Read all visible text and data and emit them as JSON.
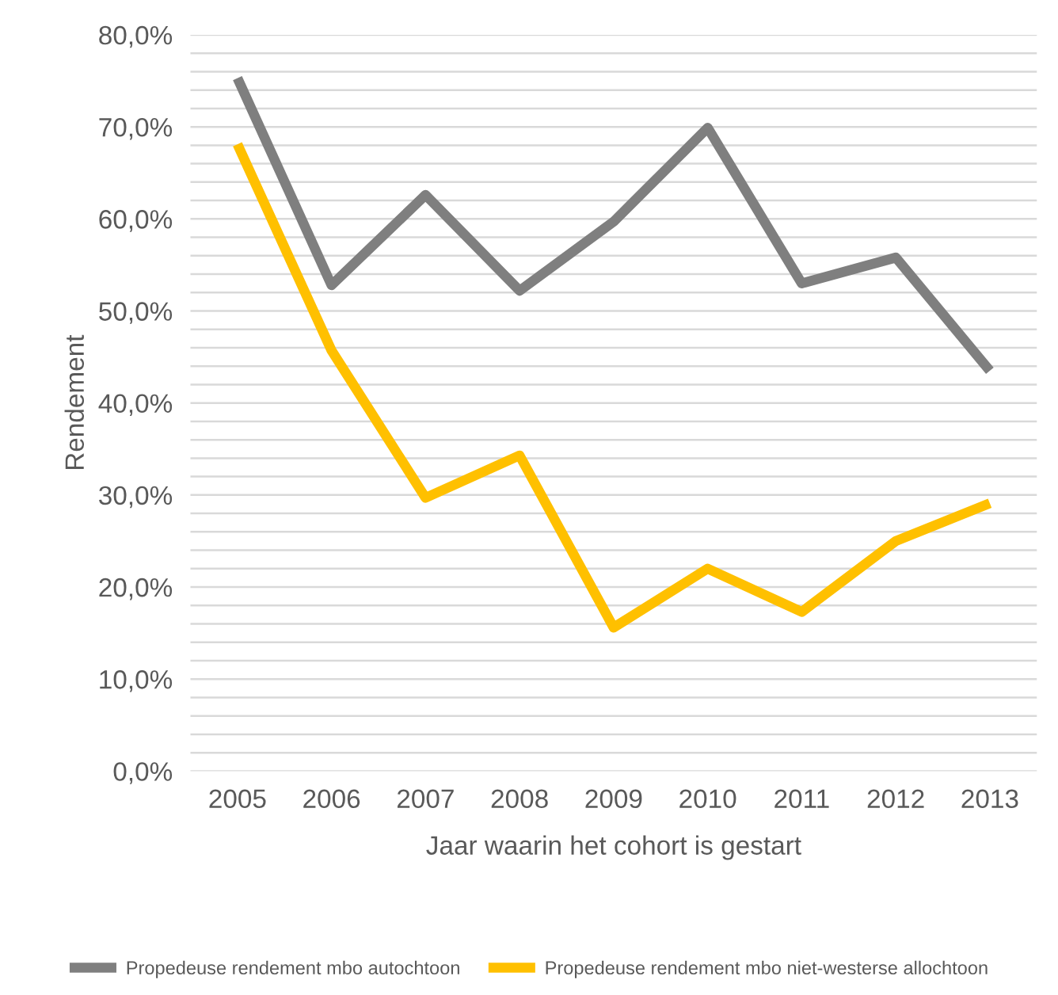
{
  "chart_data": {
    "type": "line",
    "xlabel": "Jaar waarin het cohort is gestart",
    "ylabel": "Rendement",
    "categories": [
      "2005",
      "2006",
      "2007",
      "2008",
      "2009",
      "2010",
      "2011",
      "2012",
      "2013"
    ],
    "series": [
      {
        "name": "Propedeuse rendement mbo autochtoon",
        "color": "#7f7f7f",
        "values": [
          75.3,
          52.8,
          62.6,
          52.2,
          59.7,
          69.9,
          53.0,
          55.8,
          43.5
        ]
      },
      {
        "name": "Propedeuse rendement mbo niet-westerse allochtoon",
        "color": "#ffc000",
        "values": [
          68.1,
          45.7,
          29.7,
          34.3,
          15.6,
          22.0,
          17.3,
          25.0,
          29.1
        ]
      }
    ],
    "ylim": [
      0,
      80
    ],
    "yticks": [
      {
        "value": 0,
        "label": "0,0%"
      },
      {
        "value": 2,
        "label": null
      },
      {
        "value": 4,
        "label": null
      },
      {
        "value": 6,
        "label": null
      },
      {
        "value": 8,
        "label": null
      },
      {
        "value": 10,
        "label": "10,0%"
      },
      {
        "value": 12,
        "label": null
      },
      {
        "value": 14,
        "label": null
      },
      {
        "value": 16,
        "label": null
      },
      {
        "value": 18,
        "label": null
      },
      {
        "value": 20,
        "label": "20,0%"
      },
      {
        "value": 22,
        "label": null
      },
      {
        "value": 24,
        "label": null
      },
      {
        "value": 26,
        "label": null
      },
      {
        "value": 28,
        "label": null
      },
      {
        "value": 30,
        "label": "30,0%"
      },
      {
        "value": 32,
        "label": null
      },
      {
        "value": 34,
        "label": null
      },
      {
        "value": 36,
        "label": null
      },
      {
        "value": 38,
        "label": null
      },
      {
        "value": 40,
        "label": "40,0%"
      },
      {
        "value": 42,
        "label": null
      },
      {
        "value": 44,
        "label": null
      },
      {
        "value": 46,
        "label": null
      },
      {
        "value": 48,
        "label": null
      },
      {
        "value": 50,
        "label": "50,0%"
      },
      {
        "value": 52,
        "label": null
      },
      {
        "value": 54,
        "label": null
      },
      {
        "value": 56,
        "label": null
      },
      {
        "value": 58,
        "label": null
      },
      {
        "value": 60,
        "label": "60,0%"
      },
      {
        "value": 62,
        "label": null
      },
      {
        "value": 64,
        "label": null
      },
      {
        "value": 66,
        "label": null
      },
      {
        "value": 68,
        "label": null
      },
      {
        "value": 70,
        "label": "70,0%"
      },
      {
        "value": 72,
        "label": null
      },
      {
        "value": 74,
        "label": null
      },
      {
        "value": 76,
        "label": null
      },
      {
        "value": 78,
        "label": null
      },
      {
        "value": 80,
        "label": "80,0%"
      }
    ],
    "grid": "y",
    "legend": "bottom",
    "marker": "none",
    "line_style": "solid"
  }
}
